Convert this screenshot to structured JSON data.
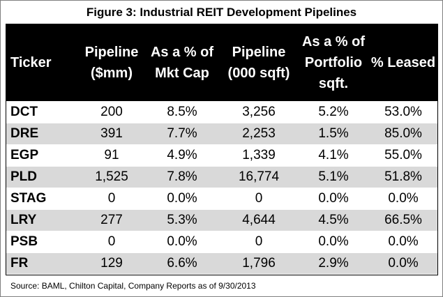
{
  "title": "Figure 3: Industrial REIT Development Pipelines",
  "columns": [
    [
      "Ticker"
    ],
    [
      "Pipeline",
      "($mm)"
    ],
    [
      "As a % of",
      "Mkt Cap"
    ],
    [
      "Pipeline",
      "(000 sqft)"
    ],
    [
      "As a % of",
      "Portfolio",
      "sqft."
    ],
    [
      "% Leased"
    ]
  ],
  "rows": [
    [
      "DCT",
      "200",
      "8.5%",
      "3,256",
      "5.2%",
      "53.0%"
    ],
    [
      "DRE",
      "391",
      "7.7%",
      "2,253",
      "1.5%",
      "85.0%"
    ],
    [
      "EGP",
      "91",
      "4.9%",
      "1,339",
      "4.1%",
      "55.0%"
    ],
    [
      "PLD",
      "1,525",
      "7.8%",
      "16,774",
      "5.1%",
      "51.8%"
    ],
    [
      "STAG",
      "0",
      "0.0%",
      "0",
      "0.0%",
      "0.0%"
    ],
    [
      "LRY",
      "277",
      "5.3%",
      "4,644",
      "4.5%",
      "66.5%"
    ],
    [
      "PSB",
      "0",
      "0.0%",
      "0",
      "0.0%",
      "0.0%"
    ],
    [
      "FR",
      "129",
      "6.6%",
      "1,796",
      "2.9%",
      "0.0%"
    ]
  ],
  "source": "Source: BAML, Chilton Capital, Company Reports as of 9/30/2013"
}
